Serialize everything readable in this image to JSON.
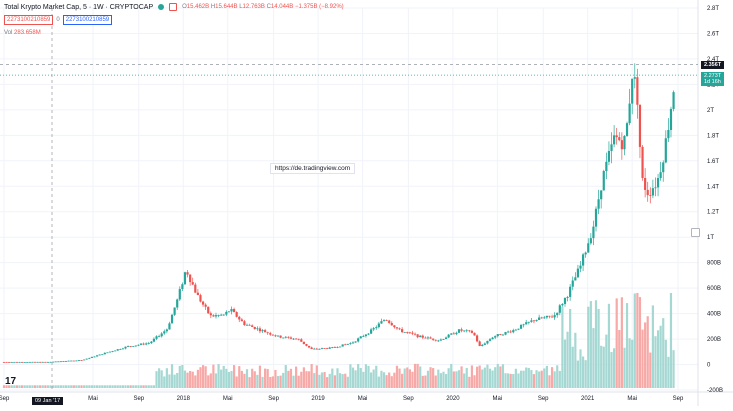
{
  "header": {
    "title": "Total Krypto Market Cap, 5 · 1W · CRYPTOCAP",
    "ohlc": [
      {
        "k": "O",
        "v": "15.462B"
      },
      {
        "k": "H",
        "v": "15.644B"
      },
      {
        "k": "L",
        "v": "12.763B"
      },
      {
        "k": "C",
        "v": "14.044B"
      }
    ],
    "change": "−1.375B (−8.92%)"
  },
  "inputs": {
    "a": "2273100210859",
    "zero": "0",
    "b": "2273100210859"
  },
  "volume": {
    "label": "Vol",
    "value": "283.658M"
  },
  "watermark": "https://de.tradingview.com",
  "logo_text": "17",
  "date_badge": "09 Jan '17",
  "price_badge_dark": "2.356T",
  "price_badge_green": {
    "price": "2.273T",
    "countdown": "1d 16h"
  },
  "colors": {
    "up": "#26a69a",
    "down": "#ef5350",
    "vol_up": "#a6d8d3",
    "vol_down": "#f7a9a7"
  },
  "chart_data": {
    "type": "candlestick",
    "y_axis": {
      "ticks": [
        {
          "v": 2.8,
          "label": "2.8T"
        },
        {
          "v": 2.6,
          "label": "2.6T"
        },
        {
          "v": 2.4,
          "label": "2.4T"
        },
        {
          "v": 2.2,
          "label": "2.2T"
        },
        {
          "v": 2.0,
          "label": "2T"
        },
        {
          "v": 1.8,
          "label": "1.8T"
        },
        {
          "v": 1.6,
          "label": "1.6T"
        },
        {
          "v": 1.4,
          "label": "1.4T"
        },
        {
          "v": 1.2,
          "label": "1.2T"
        },
        {
          "v": 1.0,
          "label": "1T"
        },
        {
          "v": 0.8,
          "label": "800B"
        },
        {
          "v": 0.6,
          "label": "600B"
        },
        {
          "v": 0.4,
          "label": "400B"
        },
        {
          "v": 0.2,
          "label": "200B"
        },
        {
          "v": 0.0,
          "label": "0"
        },
        {
          "v": -0.2,
          "label": "-200B"
        }
      ],
      "range": [
        -0.2,
        2.8
      ],
      "unit": "T"
    },
    "x_axis": {
      "ticks": [
        {
          "t": 2016.67,
          "label": "Sep"
        },
        {
          "t": 2017.33,
          "label": "Mai"
        },
        {
          "t": 2017.67,
          "label": "Sep"
        },
        {
          "t": 2018.0,
          "label": "2018"
        },
        {
          "t": 2018.33,
          "label": "Mai"
        },
        {
          "t": 2018.67,
          "label": "Sep"
        },
        {
          "t": 2019.0,
          "label": "2019"
        },
        {
          "t": 2019.33,
          "label": "Mai"
        },
        {
          "t": 2019.67,
          "label": "Sep"
        },
        {
          "t": 2020.0,
          "label": "2020"
        },
        {
          "t": 2020.33,
          "label": "Mai"
        },
        {
          "t": 2020.67,
          "label": "Sep"
        },
        {
          "t": 2021.0,
          "label": "2021"
        },
        {
          "t": 2021.33,
          "label": "Mai"
        },
        {
          "t": 2021.67,
          "label": "Sep"
        }
      ],
      "range": [
        2016.67,
        2021.67
      ]
    },
    "price_lines": [
      2.356,
      2.273
    ],
    "key_points": [
      [
        2016.67,
        0.02
      ],
      [
        2017.0,
        0.02
      ],
      [
        2017.25,
        0.035
      ],
      [
        2017.42,
        0.09
      ],
      [
        2017.58,
        0.14
      ],
      [
        2017.75,
        0.17
      ],
      [
        2017.88,
        0.28
      ],
      [
        2017.96,
        0.52
      ],
      [
        2018.02,
        0.75
      ],
      [
        2018.1,
        0.55
      ],
      [
        2018.2,
        0.38
      ],
      [
        2018.3,
        0.39
      ],
      [
        2018.35,
        0.43
      ],
      [
        2018.45,
        0.32
      ],
      [
        2018.55,
        0.28
      ],
      [
        2018.7,
        0.22
      ],
      [
        2018.85,
        0.2
      ],
      [
        2018.95,
        0.12
      ],
      [
        2019.1,
        0.13
      ],
      [
        2019.25,
        0.17
      ],
      [
        2019.4,
        0.27
      ],
      [
        2019.5,
        0.36
      ],
      [
        2019.6,
        0.27
      ],
      [
        2019.75,
        0.22
      ],
      [
        2019.9,
        0.19
      ],
      [
        2020.05,
        0.27
      ],
      [
        2020.15,
        0.25
      ],
      [
        2020.2,
        0.14
      ],
      [
        2020.3,
        0.22
      ],
      [
        2020.45,
        0.27
      ],
      [
        2020.6,
        0.35
      ],
      [
        2020.75,
        0.38
      ],
      [
        2020.85,
        0.55
      ],
      [
        2020.95,
        0.78
      ],
      [
        2021.05,
        1.12
      ],
      [
        2021.1,
        1.42
      ],
      [
        2021.2,
        1.78
      ],
      [
        2021.28,
        1.75
      ],
      [
        2021.33,
        2.3
      ],
      [
        2021.37,
        2.1
      ],
      [
        2021.4,
        1.45
      ],
      [
        2021.45,
        1.35
      ],
      [
        2021.52,
        1.45
      ],
      [
        2021.58,
        1.75
      ],
      [
        2021.65,
        2.273
      ]
    ],
    "volume_range": [
      0,
      70
    ]
  }
}
